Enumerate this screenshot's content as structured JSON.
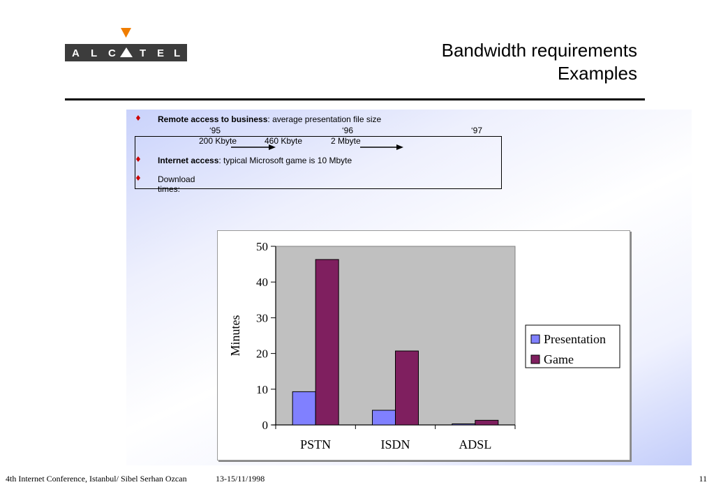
{
  "logo": {
    "text": "ALCATEL",
    "accent": "#f07d00",
    "bg": "#3c3c3c"
  },
  "title": {
    "line1": "Bandwidth requirements",
    "line2": "Examples"
  },
  "bullets": {
    "b1_bold": "Remote access to business",
    "b1_rest": ": average presentation file size",
    "years": [
      "‘95",
      "‘96",
      "‘97"
    ],
    "sizes": [
      "200 Kbyte",
      "460 Kbyte",
      "2 Mbyte"
    ],
    "b2_bold": "Internet access",
    "b2_rest": ": typical Microsoft game is 10 Mbyte",
    "b3_line1": "Download",
    "b3_line2": "times:"
  },
  "chart_data": {
    "type": "bar",
    "categories": [
      "PSTN",
      "ISDN",
      "ADSL"
    ],
    "series": [
      {
        "name": "Presentation",
        "color": "#8080ff",
        "values": [
          9.3,
          4.1,
          0.3
        ]
      },
      {
        "name": "Game",
        "color": "#7f1f5f",
        "values": [
          46.3,
          20.7,
          1.3
        ]
      }
    ],
    "ylabel": "Minutes",
    "ylim": [
      0,
      50
    ],
    "yticks": [
      "0",
      "10",
      "20",
      "30",
      "40",
      "50"
    ],
    "legend": "right",
    "plot_bg": "#c0c0c0"
  },
  "footer": {
    "conference": "4th Internet Conference, Istanbul/ Sibel Serhan Ozcan",
    "date": "13-15/11/1998",
    "page": "11"
  }
}
